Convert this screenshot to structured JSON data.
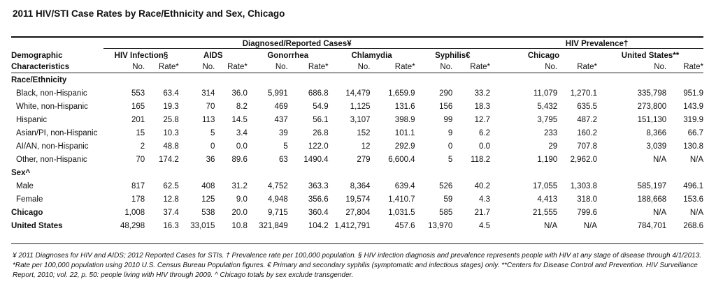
{
  "title": "2011 HIV/STI Case Rates by Race/Ethnicity and Sex, Chicago",
  "headers": {
    "group_diagnosed": "Diagnosed/Reported Cases¥",
    "group_prevalence": "HIV Prevalence†",
    "row_label_line1": "Demographic",
    "row_label_line2": "Characteristics",
    "hiv": "HIV Infection§",
    "aids": "AIDS",
    "gonorrhea": "Gonorrhea",
    "chlamydia": "Chlamydia",
    "syphilis": "Syphilis€",
    "chicago": "Chicago",
    "us": "United States**",
    "no": "No.",
    "rate": "Rate*"
  },
  "sections": {
    "race": "Race/Ethnicity",
    "sex": "Sex^"
  },
  "rows": {
    "black": {
      "label": "Black, non-Hispanic",
      "v": [
        "553",
        "63.4",
        "314",
        "36.0",
        "5,991",
        "686.8",
        "14,479",
        "1,659.9",
        "290",
        "33.2",
        "11,079",
        "1,270.1",
        "335,798",
        "951.9"
      ]
    },
    "white": {
      "label": "White, non-Hispanic",
      "v": [
        "165",
        "19.3",
        "70",
        "8.2",
        "469",
        "54.9",
        "1,125",
        "131.6",
        "156",
        "18.3",
        "5,432",
        "635.5",
        "273,800",
        "143.9"
      ]
    },
    "hispanic": {
      "label": "Hispanic",
      "v": [
        "201",
        "25.8",
        "113",
        "14.5",
        "437",
        "56.1",
        "3,107",
        "398.9",
        "99",
        "12.7",
        "3,795",
        "487.2",
        "151,130",
        "319.9"
      ]
    },
    "asian": {
      "label": "Asian/PI, non-Hispanic",
      "v": [
        "15",
        "10.3",
        "5",
        "3.4",
        "39",
        "26.8",
        "152",
        "101.1",
        "9",
        "6.2",
        "233",
        "160.2",
        "8,366",
        "66.7"
      ]
    },
    "aian": {
      "label": "AI/AN, non-Hispanic",
      "v": [
        "2",
        "48.8",
        "0",
        "0.0",
        "5",
        "122.0",
        "12",
        "292.9",
        "0",
        "0.0",
        "29",
        "707.8",
        "3,039",
        "130.8"
      ]
    },
    "other": {
      "label": "Other, non-Hispanic",
      "v": [
        "70",
        "174.2",
        "36",
        "89.6",
        "63",
        "1490.4",
        "279",
        "6,600.4",
        "5",
        "118.2",
        "1,190",
        "2,962.0",
        "N/A",
        "N/A"
      ]
    },
    "male": {
      "label": "Male",
      "v": [
        "817",
        "62.5",
        "408",
        "31.2",
        "4,752",
        "363.3",
        "8,364",
        "639.4",
        "526",
        "40.2",
        "17,055",
        "1,303.8",
        "585,197",
        "496.1"
      ]
    },
    "female": {
      "label": "Female",
      "v": [
        "178",
        "12.8",
        "125",
        "9.0",
        "4,948",
        "356.6",
        "19,574",
        "1,410.7",
        "59",
        "4.3",
        "4,413",
        "318.0",
        "188,668",
        "153.6"
      ]
    },
    "chicago": {
      "label": "Chicago",
      "v": [
        "1,008",
        "37.4",
        "538",
        "20.0",
        "9,715",
        "360.4",
        "27,804",
        "1,031.5",
        "585",
        "21.7",
        "21,555",
        "799.6",
        "N/A",
        "N/A"
      ]
    },
    "us": {
      "label": "United States",
      "v": [
        "48,298",
        "16.3",
        "33,015",
        "10.8",
        "321,849",
        "104.2",
        "1,412,791",
        "457.6",
        "13,970",
        "4.5",
        "N/A",
        "N/A",
        "784,701",
        "268.6"
      ]
    }
  },
  "footnotes": [
    "¥ 2011 Diagnoses for HIV and AIDS; 2012 Reported Cases for STIs. † Prevalence rate per 100,000 population. § HIV infection diagnosis and prevalence represents people with HIV at any stage of disease through 4/1/2013.",
    "*Rate per 100,000 population using 2010 U.S. Census Bureau Population figures. € Primary and secondary syphilis (symptomatic and infectious stages) only. **Centers for Disease Control and Prevention. HIV Surveillance",
    "Report, 2010; vol. 22, p. 50: people living with HIV through 2009. ^ Chicago totals by sex exclude transgender."
  ]
}
